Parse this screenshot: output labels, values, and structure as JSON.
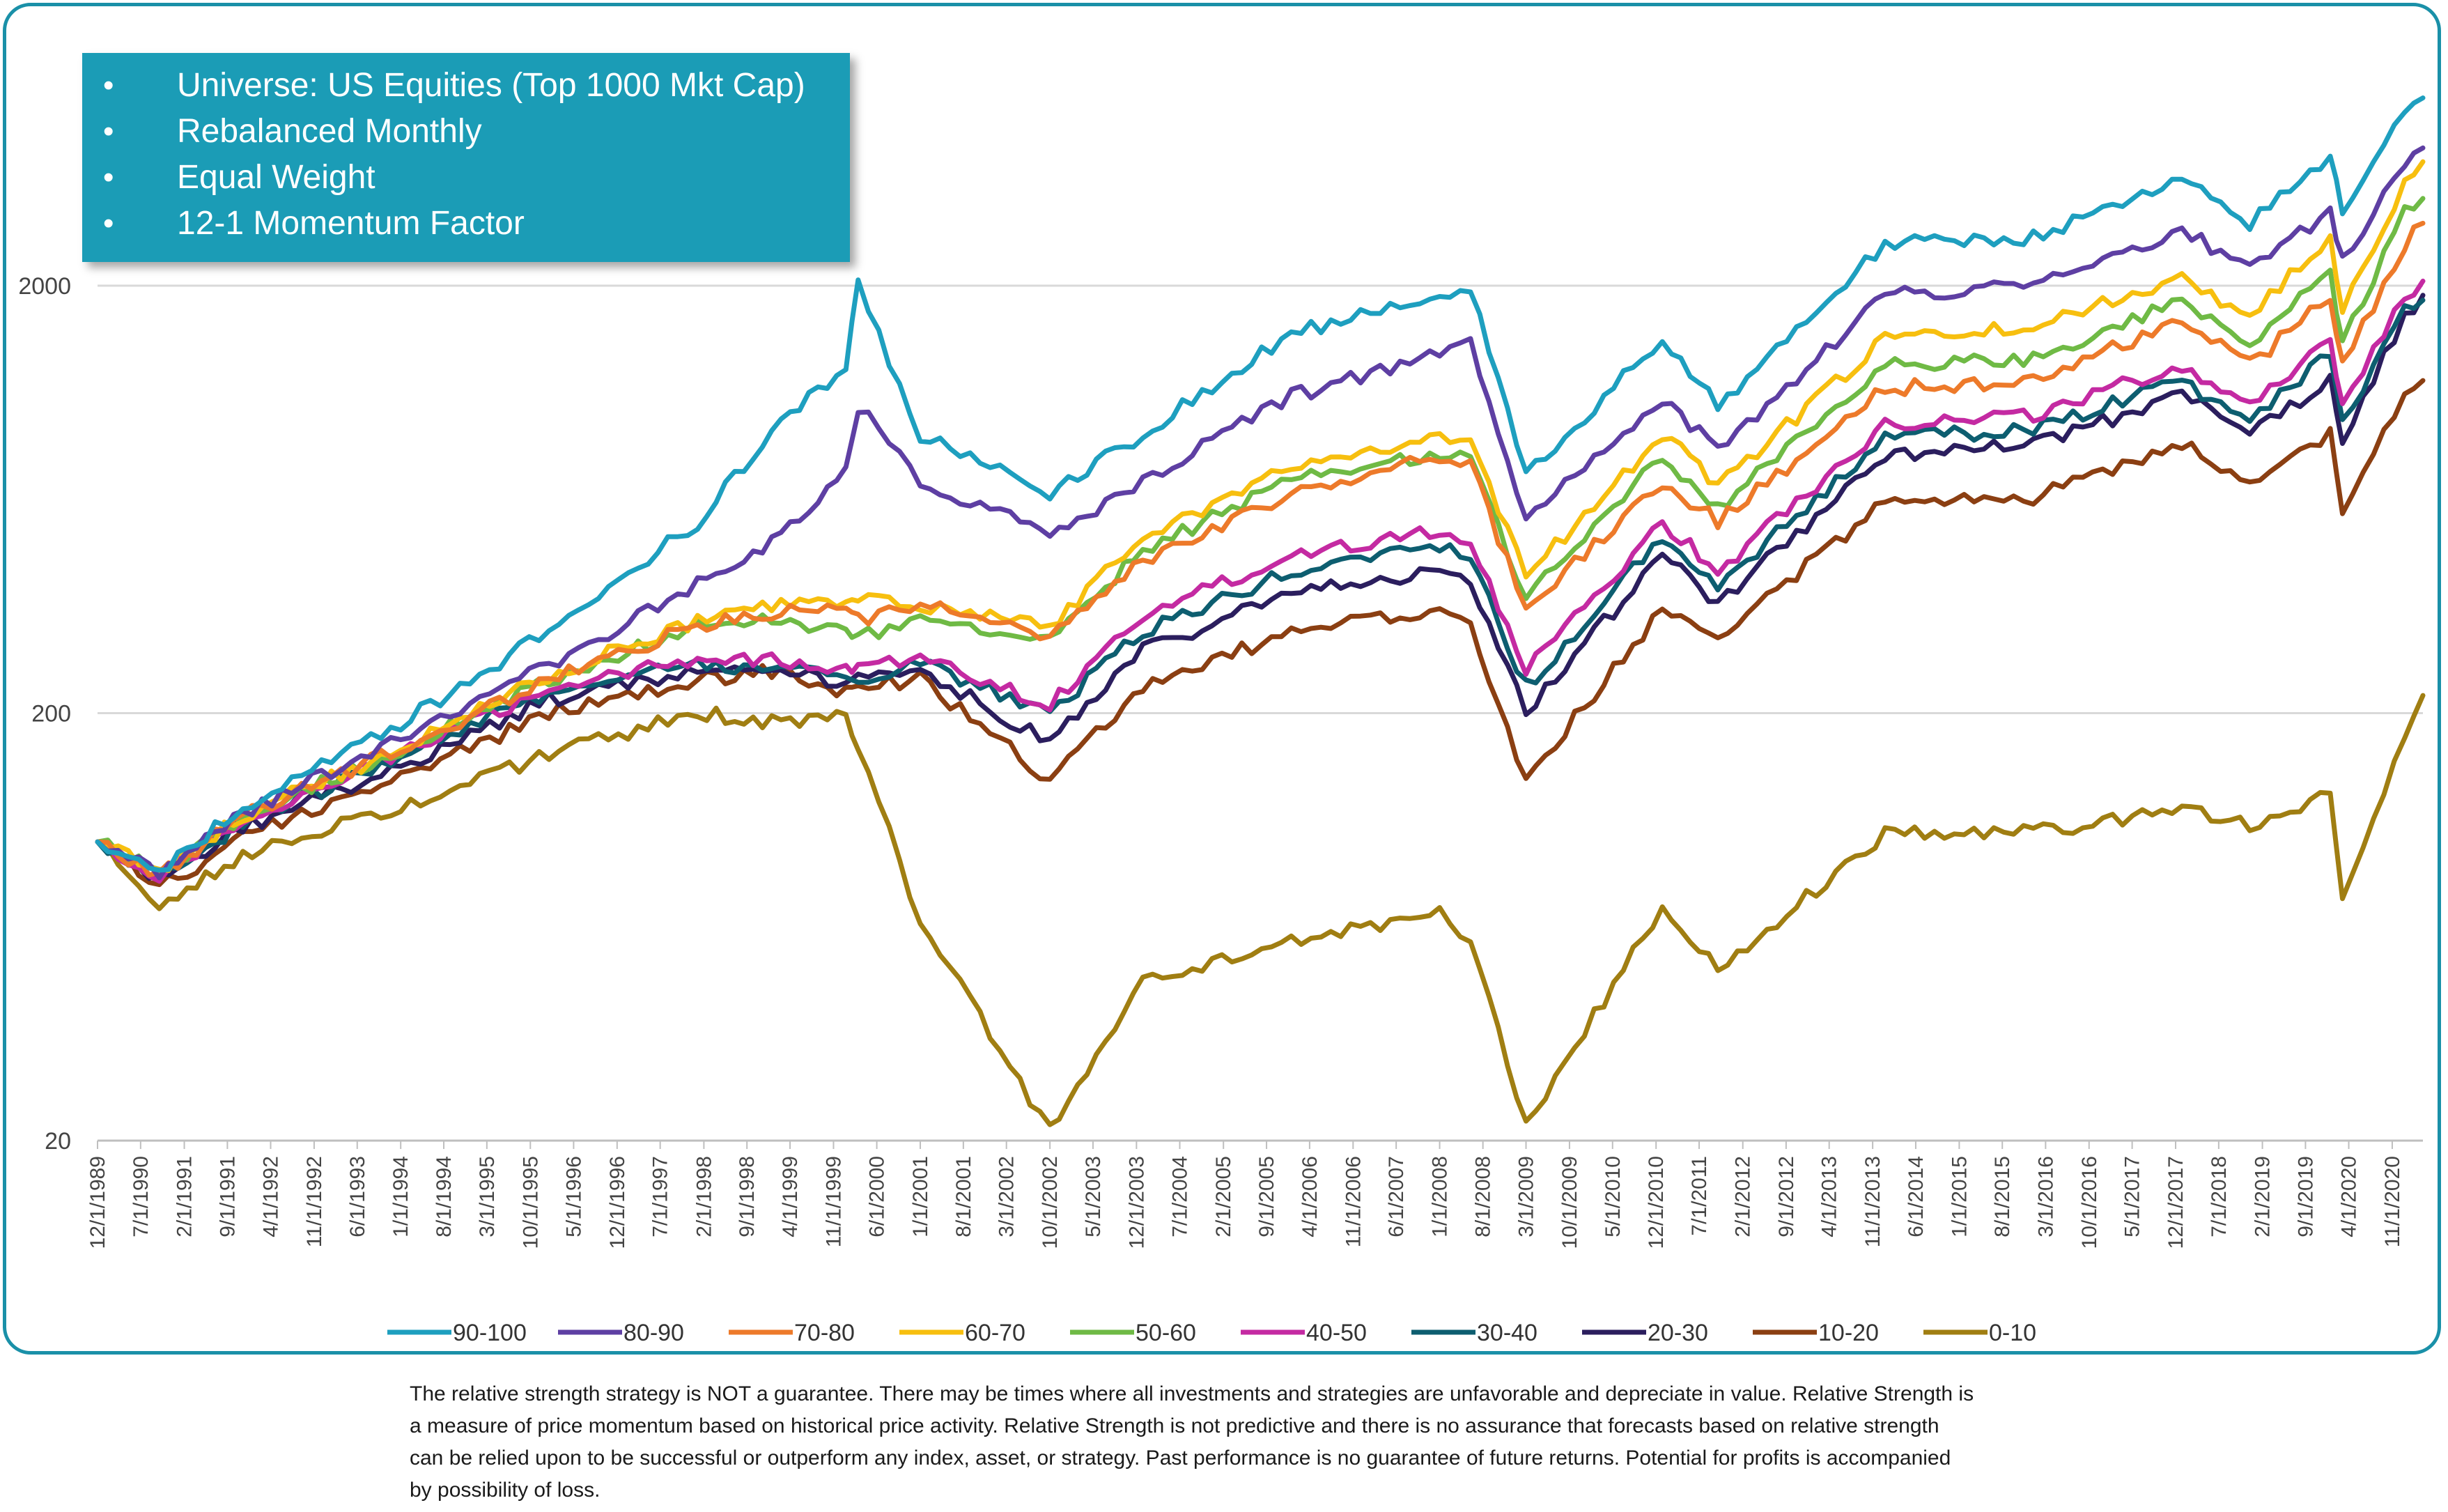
{
  "infobox": {
    "items": [
      "Universe: US Equities (Top 1000 Mkt Cap)",
      "Rebalanced Monthly",
      "Equal Weight",
      "12-1 Momentum Factor"
    ]
  },
  "disclaimer": {
    "lines": [
      "The relative strength strategy is NOT a guarantee.  There may be times where all investments and strategies are unfavorable and depreciate in value. Relative Strength is",
      "a measure of price momentum based on historical price activity.  Relative Strength is not predictive and there is no assurance that forecasts based on relative strength",
      "can be relied upon  to be successful or outperform any index, asset, or strategy. Past performance is no guarantee of future returns. Potential for profits is accompanied",
      "by possibility of loss."
    ]
  },
  "chart_data": {
    "type": "line",
    "y_scale": "log",
    "ylim": [
      20,
      6000
    ],
    "y_ticks": [
      "2000",
      "200",
      "20"
    ],
    "x_range": [
      "12/1/1989",
      "4/1/2021"
    ],
    "x_tick_labels": [
      "12/1/1989",
      "7/1/1990",
      "2/1/1991",
      "9/1/1991",
      "4/1/1992",
      "11/1/1992",
      "6/1/1993",
      "1/1/1994",
      "8/1/1994",
      "3/1/1995",
      "10/1/1995",
      "5/1/1996",
      "12/1/1996",
      "7/1/1997",
      "2/1/1998",
      "9/1/1998",
      "4/1/1999",
      "11/1/1999",
      "6/1/2000",
      "1/1/2001",
      "8/1/2001",
      "3/1/2002",
      "10/1/2002",
      "5/1/2003",
      "12/1/2003",
      "7/1/2004",
      "2/1/2005",
      "9/1/2005",
      "4/1/2006",
      "11/1/2006",
      "6/1/2007",
      "1/1/2008",
      "8/1/2008",
      "3/1/2009",
      "10/1/2009",
      "5/1/2010",
      "12/1/2010",
      "7/1/2011",
      "2/1/2012",
      "9/1/2012",
      "4/1/2013",
      "11/1/2013",
      "6/1/2014",
      "1/1/2015",
      "8/1/2015",
      "3/1/2016",
      "10/1/2016",
      "5/1/2017",
      "12/1/2017",
      "7/1/2018",
      "2/1/2019",
      "9/1/2019",
      "4/1/2020",
      "11/1/2020"
    ],
    "grid": true,
    "legend_position": "bottom",
    "series": [
      {
        "name": "90-100",
        "color": "#1e9fbf",
        "x": [
          "12/1/1989",
          "10/1/1990",
          "1/1/1992",
          "1/1/1994",
          "1/1/1996",
          "1/1/1998",
          "1/1/1999",
          "1/1/2000",
          "3/1/2000",
          "1/1/2001",
          "10/1/2002",
          "1/1/2004",
          "1/1/2006",
          "1/1/2008",
          "6/1/2008",
          "3/1/2009",
          "1/1/2011",
          "10/1/2011",
          "1/1/2014",
          "1/1/2016",
          "1/1/2018",
          "12/1/2018",
          "1/1/2020",
          "3/1/2020",
          "1/1/2021",
          "4/1/2021"
        ],
        "values": [
          100,
          85,
          125,
          190,
          310,
          560,
          900,
          1300,
          2000,
          900,
          650,
          900,
          1550,
          1900,
          2000,
          720,
          1500,
          1050,
          2500,
          2600,
          3500,
          2800,
          4000,
          3000,
          5200,
          5500
        ]
      },
      {
        "name": "80-90",
        "color": "#5e3fa3",
        "x": [
          "12/1/1989",
          "10/1/1990",
          "1/1/1992",
          "1/1/1994",
          "1/1/1996",
          "1/1/1998",
          "1/1/1999",
          "1/1/2000",
          "3/1/2000",
          "1/1/2001",
          "10/1/2002",
          "1/1/2004",
          "1/1/2006",
          "1/1/2008",
          "6/1/2008",
          "3/1/2009",
          "1/1/2011",
          "10/1/2011",
          "1/1/2014",
          "1/1/2016",
          "1/1/2018",
          "12/1/2018",
          "1/1/2020",
          "3/1/2020",
          "1/1/2021",
          "4/1/2021"
        ],
        "values": [
          100,
          84,
          120,
          175,
          260,
          400,
          500,
          750,
          1050,
          700,
          520,
          700,
          1100,
          1400,
          1450,
          570,
          1100,
          820,
          1900,
          2000,
          2700,
          2200,
          3000,
          2300,
          3900,
          4200
        ]
      },
      {
        "name": "70-80",
        "color": "#ed7a2a",
        "x": [
          "12/1/1989",
          "10/1/1990",
          "1/1/1992",
          "1/1/1994",
          "1/1/1996",
          "1/1/1998",
          "1/1/1999",
          "1/1/2000",
          "3/1/2000",
          "1/1/2001",
          "10/1/2002",
          "1/1/2004",
          "1/1/2006",
          "1/1/2008",
          "6/1/2008",
          "3/1/2009",
          "1/1/2011",
          "10/1/2011",
          "1/1/2014",
          "1/1/2016",
          "1/1/2018",
          "12/1/2018",
          "1/1/2020",
          "3/1/2020",
          "1/1/2021",
          "4/1/2021"
        ],
        "values": [
          100,
          84,
          118,
          165,
          240,
          320,
          340,
          360,
          330,
          360,
          300,
          450,
          650,
          800,
          760,
          350,
          700,
          560,
          1150,
          1200,
          1650,
          1300,
          1900,
          1300,
          2500,
          2800
        ]
      },
      {
        "name": "60-70",
        "color": "#f7bf0f",
        "x": [
          "12/1/1989",
          "10/1/1990",
          "1/1/1992",
          "1/1/1994",
          "1/1/1996",
          "1/1/1998",
          "1/1/1999",
          "1/1/2000",
          "3/1/2000",
          "1/1/2001",
          "10/1/2002",
          "1/1/2004",
          "1/1/2006",
          "1/1/2008",
          "6/1/2008",
          "3/1/2009",
          "1/1/2011",
          "10/1/2011",
          "1/1/2014",
          "1/1/2016",
          "1/1/2018",
          "12/1/2018",
          "1/1/2020",
          "3/1/2020",
          "1/1/2021",
          "4/1/2021"
        ],
        "values": [
          100,
          86,
          118,
          165,
          245,
          330,
          360,
          360,
          380,
          360,
          320,
          520,
          750,
          900,
          860,
          420,
          900,
          680,
          1500,
          1600,
          2100,
          1700,
          2600,
          1800,
          3500,
          3900
        ]
      },
      {
        "name": "50-60",
        "color": "#6fba45",
        "x": [
          "12/1/1989",
          "10/1/1990",
          "1/1/1992",
          "1/1/1994",
          "1/1/1996",
          "1/1/1998",
          "1/1/1999",
          "1/1/2000",
          "3/1/2000",
          "1/1/2001",
          "10/1/2002",
          "1/1/2004",
          "1/1/2006",
          "1/1/2008",
          "6/1/2008",
          "3/1/2009",
          "1/1/2011",
          "10/1/2011",
          "1/1/2014",
          "1/1/2016",
          "1/1/2018",
          "12/1/2018",
          "1/1/2020",
          "3/1/2020",
          "1/1/2021",
          "4/1/2021"
        ],
        "values": [
          100,
          85,
          118,
          163,
          240,
          320,
          330,
          310,
          300,
          330,
          300,
          480,
          700,
          820,
          780,
          370,
          800,
          600,
          1300,
          1350,
          1850,
          1450,
          2200,
          1450,
          3000,
          3200
        ]
      },
      {
        "name": "40-50",
        "color": "#c42aa2",
        "x": [
          "12/1/1989",
          "10/1/1990",
          "1/1/1992",
          "1/1/1994",
          "1/1/1996",
          "1/1/1998",
          "1/1/1999",
          "1/1/2000",
          "3/1/2000",
          "1/1/2001",
          "10/1/2002",
          "1/1/2004",
          "1/1/2006",
          "1/1/2008",
          "6/1/2008",
          "3/1/2009",
          "1/1/2011",
          "10/1/2011",
          "1/1/2014",
          "1/1/2016",
          "1/1/2018",
          "12/1/2018",
          "1/1/2020",
          "3/1/2020",
          "1/1/2021",
          "4/1/2021"
        ],
        "values": [
          100,
          84,
          116,
          160,
          230,
          270,
          265,
          250,
          260,
          270,
          210,
          340,
          470,
          540,
          500,
          250,
          560,
          430,
          950,
          1000,
          1300,
          1050,
          1500,
          1050,
          1900,
          2050
        ]
      },
      {
        "name": "30-40",
        "color": "#0d5e70",
        "x": [
          "12/1/1989",
          "10/1/1990",
          "1/1/1992",
          "1/1/1994",
          "1/1/1996",
          "1/1/1998",
          "1/1/1999",
          "1/1/2000",
          "3/1/2000",
          "1/1/2001",
          "10/1/2002",
          "1/1/2004",
          "1/1/2006",
          "1/1/2008",
          "6/1/2008",
          "3/1/2009",
          "1/1/2011",
          "10/1/2011",
          "1/1/2014",
          "1/1/2016",
          "1/1/2018",
          "12/1/2018",
          "1/1/2020",
          "3/1/2020",
          "1/1/2021",
          "4/1/2021"
        ],
        "values": [
          100,
          83,
          114,
          156,
          225,
          260,
          255,
          240,
          240,
          260,
          200,
          310,
          430,
          490,
          460,
          230,
          520,
          400,
          880,
          920,
          1200,
          950,
          1400,
          960,
          1750,
          1850
        ]
      },
      {
        "name": "20-30",
        "color": "#2b1e5e",
        "x": [
          "12/1/1989",
          "10/1/1990",
          "1/1/1992",
          "1/1/1994",
          "1/1/1996",
          "1/1/1998",
          "1/1/1999",
          "1/1/2000",
          "3/1/2000",
          "1/1/2001",
          "10/1/2002",
          "1/1/2004",
          "1/1/2006",
          "1/1/2008",
          "6/1/2008",
          "3/1/2009",
          "1/1/2011",
          "10/1/2011",
          "1/1/2014",
          "1/1/2016",
          "1/1/2018",
          "12/1/2018",
          "1/1/2020",
          "3/1/2020",
          "1/1/2021",
          "4/1/2021"
        ],
        "values": [
          100,
          82,
          110,
          150,
          215,
          250,
          250,
          235,
          240,
          255,
          170,
          280,
          380,
          430,
          400,
          200,
          470,
          360,
          800,
          850,
          1100,
          900,
          1200,
          850,
          1700,
          1900
        ]
      },
      {
        "name": "10-20",
        "color": "#8b3f12",
        "x": [
          "12/1/1989",
          "10/1/1990",
          "1/1/1992",
          "1/1/1994",
          "1/1/1996",
          "1/1/1998",
          "1/1/1999",
          "1/1/2000",
          "3/1/2000",
          "1/1/2001",
          "10/1/2002",
          "1/1/2004",
          "1/1/2006",
          "1/1/2008",
          "6/1/2008",
          "3/1/2009",
          "1/1/2011",
          "10/1/2011",
          "1/1/2014",
          "1/1/2016",
          "1/1/2018",
          "12/1/2018",
          "1/1/2020",
          "3/1/2020",
          "1/1/2021",
          "4/1/2021"
        ],
        "values": [
          100,
          78,
          105,
          140,
          200,
          240,
          250,
          225,
          230,
          240,
          140,
          230,
          310,
          350,
          320,
          140,
          350,
          300,
          620,
          640,
          850,
          700,
          900,
          600,
          1100,
          1200
        ]
      },
      {
        "name": "0-10",
        "color": "#a07e12",
        "x": [
          "12/1/1989",
          "10/1/1990",
          "1/1/1992",
          "1/1/1994",
          "1/1/1996",
          "1/1/1998",
          "1/1/1999",
          "1/1/2000",
          "3/1/2000",
          "1/1/2001",
          "10/1/2002",
          "1/1/2004",
          "1/1/2006",
          "1/1/2008",
          "6/1/2008",
          "3/1/2009",
          "1/1/2011",
          "10/1/2011",
          "1/1/2014",
          "1/1/2016",
          "1/1/2018",
          "12/1/2018",
          "1/1/2020",
          "3/1/2020",
          "1/1/2021",
          "4/1/2021"
        ],
        "values": [
          100,
          72,
          95,
          120,
          160,
          200,
          190,
          200,
          170,
          65,
          21,
          48,
          58,
          68,
          58,
          22,
          70,
          50,
          105,
          105,
          120,
          110,
          130,
          75,
          175,
          220
        ]
      }
    ]
  }
}
